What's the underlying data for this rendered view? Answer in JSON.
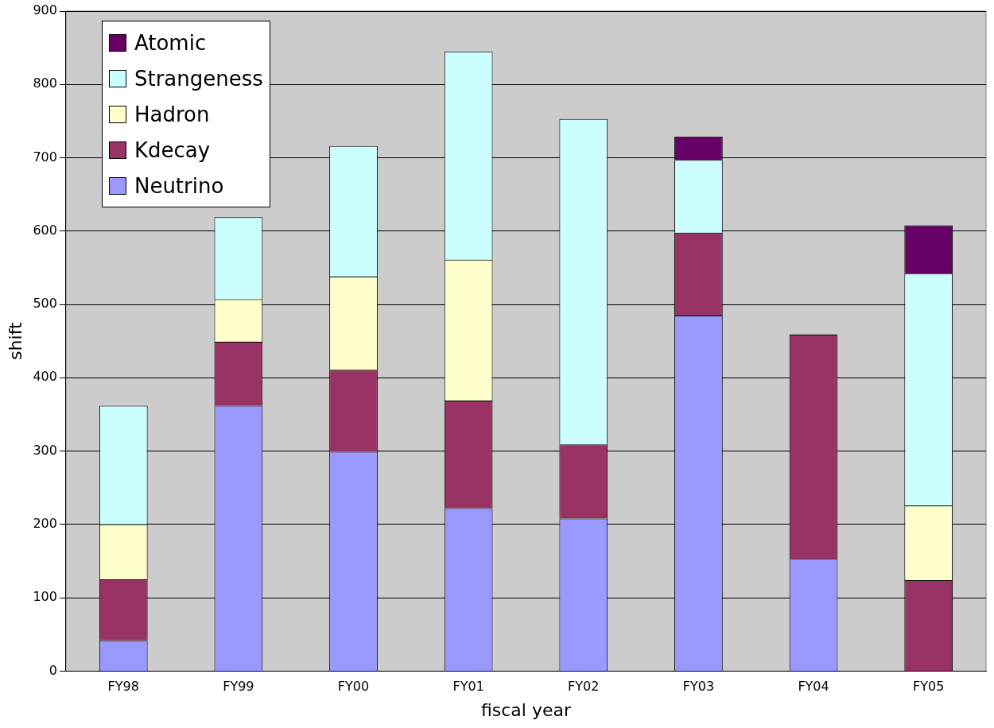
{
  "chart_data": {
    "type": "bar",
    "stacked": true,
    "xlabel": "fiscal year",
    "ylabel": "shift",
    "categories": [
      "FY98",
      "FY99",
      "FY00",
      "FY01",
      "FY02",
      "FY03",
      "FY04",
      "FY05"
    ],
    "series": [
      {
        "name": "Neutrino",
        "color": "#9999ff",
        "values": [
          42,
          362,
          299,
          222,
          208,
          485,
          153,
          0
        ]
      },
      {
        "name": "Kdecay",
        "color": "#993366",
        "values": [
          83,
          87,
          112,
          147,
          101,
          113,
          306,
          124
        ]
      },
      {
        "name": "Hadron",
        "color": "#ffffcc",
        "values": [
          75,
          58,
          127,
          192,
          0,
          0,
          0,
          102
        ]
      },
      {
        "name": "Strangeness",
        "color": "#ccffff",
        "values": [
          162,
          112,
          178,
          284,
          444,
          99,
          0,
          316
        ]
      },
      {
        "name": "Atomic",
        "color": "#660066",
        "values": [
          0,
          0,
          0,
          0,
          0,
          32,
          0,
          66
        ]
      }
    ],
    "ylim": [
      0,
      900
    ],
    "yticks": [
      0,
      100,
      200,
      300,
      400,
      500,
      600,
      700,
      800,
      900
    ],
    "grid": "y",
    "legend": "top left"
  }
}
